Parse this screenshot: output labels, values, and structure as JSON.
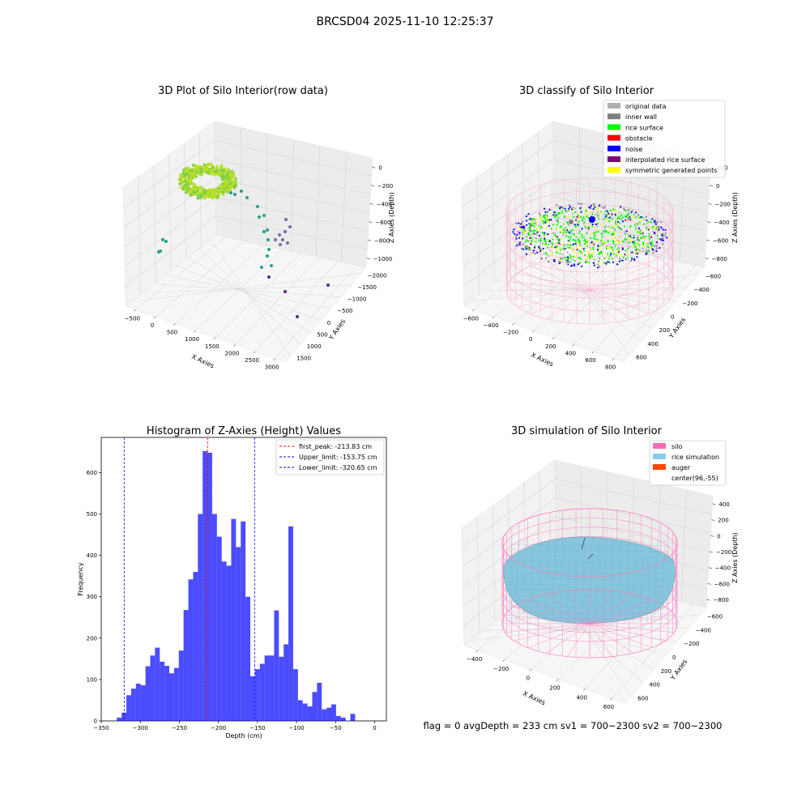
{
  "figure": {
    "suptitle": "BRCSD04 2025-11-10 12:25:37",
    "footer": "flag = 0     avgDepth = 233 cm  sv1 = 700~2300  sv2 = 700~2300"
  },
  "panel_raw": {
    "title": "3D Plot of Silo Interior(row data)",
    "xlabel": "X Axies",
    "ylabel": "Y Axies",
    "zlabel": "Z Axies (Depth)",
    "xticks": [
      "−500",
      "0",
      "500",
      "1000",
      "1500",
      "2000",
      "2500",
      "3000"
    ],
    "yticks": [
      "1500",
      "1000",
      "500",
      "0",
      "−500",
      "−1000",
      "−1500",
      "−2000"
    ],
    "zticks": [
      "0",
      "−200",
      "−400",
      "−600",
      "−800",
      "−1000"
    ],
    "colors": {
      "surface": "#b6de2b",
      "surface_edge": "#7ccf4a",
      "mid": "#2a9d8f",
      "low": "#7d6aa8",
      "deep": "#5b2a86"
    }
  },
  "panel_classify": {
    "title": "3D classify of Silo Interior",
    "xlabel": "X Axies",
    "ylabel": "Y Axies",
    "zlabel": "Z Axies (Depth)",
    "xticks": [
      "−600",
      "−400",
      "−200",
      "0",
      "200",
      "400",
      "600",
      "800"
    ],
    "yticks": [
      "600",
      "400",
      "200",
      "0",
      "−200",
      "−400",
      "−600"
    ],
    "zticks": [
      "200",
      "0",
      "−200",
      "−400",
      "−600",
      "−800"
    ],
    "legend": [
      {
        "label": "original data",
        "color": "#b0b0b0"
      },
      {
        "label": "inner wall",
        "color": "#808080"
      },
      {
        "label": "rice surface",
        "color": "#00ff00"
      },
      {
        "label": "obstacle",
        "color": "#ff0000"
      },
      {
        "label": "noise",
        "color": "#0000ff"
      },
      {
        "label": "interpolated rice surface",
        "color": "#800080"
      },
      {
        "label": "symmetric generated points",
        "color": "#ffff00"
      }
    ],
    "wire_color": "#ff9ccf"
  },
  "panel_sim": {
    "title": "3D simulation of Silo Interior",
    "xlabel": "X Axies",
    "ylabel": "Y Axies",
    "zlabel": "Z Axies (Depth)",
    "xticks": [
      "−400",
      "−200",
      "0",
      "200",
      "400",
      "600"
    ],
    "yticks": [
      "600",
      "400",
      "200",
      "0",
      "−200",
      "−400",
      "−600"
    ],
    "zticks": [
      "400",
      "200",
      "0",
      "−200",
      "−400",
      "−600",
      "−800"
    ],
    "legend": [
      {
        "label": "silo",
        "color": "#ff69b4"
      },
      {
        "label": "rice simulation",
        "color": "#87ceeb"
      },
      {
        "label": "auger",
        "color": "#ff4500"
      },
      {
        "label": "center(96,-55)",
        "color": "none"
      }
    ],
    "wire_color": "#ff7ac0",
    "surface_color": "#87c6dd"
  },
  "chart_data": {
    "type": "bar",
    "title": "Histogram of Z-Axies (Height) Values",
    "xlabel": "Depth (cm)",
    "ylabel": "Frequency",
    "xlim": [
      -350,
      15
    ],
    "ylim": [
      0,
      685
    ],
    "xticks": [
      -350,
      -300,
      -250,
      -200,
      -150,
      -100,
      -50,
      0
    ],
    "yticks": [
      0,
      100,
      200,
      300,
      400,
      500,
      600
    ],
    "bin_start": -330,
    "bin_width": 6.1,
    "color": "#0000ff",
    "values": [
      8,
      20,
      62,
      78,
      90,
      86,
      132,
      158,
      177,
      143,
      133,
      115,
      128,
      170,
      268,
      342,
      360,
      500,
      652,
      648,
      500,
      445,
      385,
      375,
      488,
      420,
      482,
      300,
      108,
      125,
      138,
      158,
      158,
      267,
      155,
      185,
      470,
      125,
      50,
      42,
      35,
      70,
      92,
      28,
      32,
      40,
      12,
      8,
      0,
      17
    ],
    "vlines": [
      {
        "label": "first_peak: -213.83 cm",
        "x": -213.83,
        "color": "#ff0000"
      },
      {
        "label": "Upper_limit: -153.75 cm",
        "x": -153.75,
        "color": "#0000ff"
      },
      {
        "label": "Lower_limit: -320.65 cm",
        "x": -320.65,
        "color": "#0000ff"
      }
    ]
  }
}
